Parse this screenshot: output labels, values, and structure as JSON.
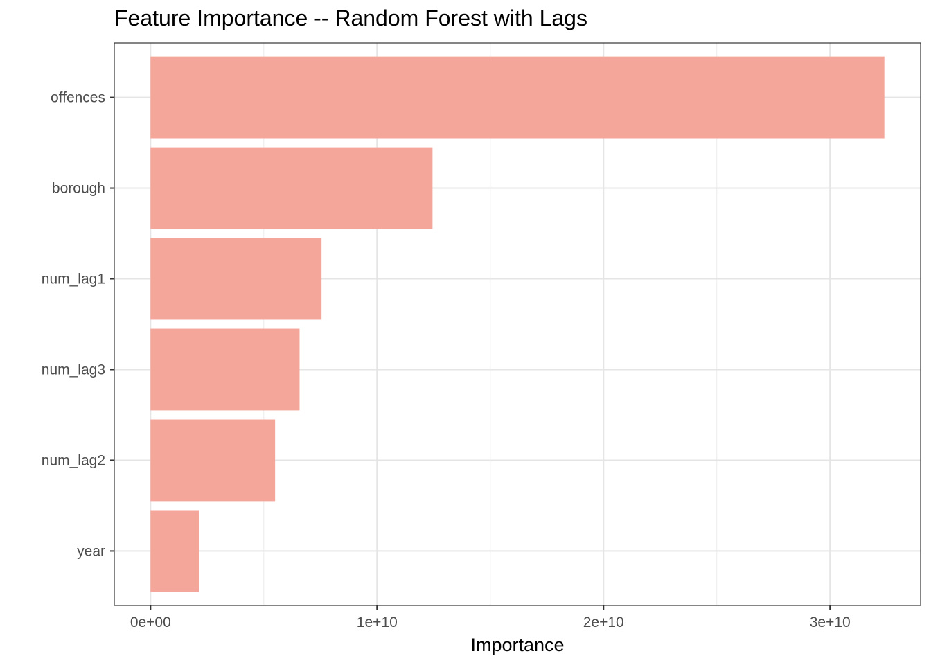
{
  "chart_data": {
    "type": "bar",
    "orientation": "horizontal",
    "title": "Feature Importance -- Random Forest with Lags",
    "xlabel": "Importance",
    "ylabel": "",
    "categories": [
      "offences",
      "borough",
      "num_lag1",
      "num_lag3",
      "num_lag2",
      "year"
    ],
    "values": [
      32400000000,
      12450000000,
      7550000000,
      6580000000,
      5500000000,
      2150000000
    ],
    "xlim": [
      -1600000000,
      34000000000
    ],
    "x_ticks": [
      0,
      10000000000,
      20000000000,
      30000000000
    ],
    "x_tick_labels": [
      "0e+00",
      "1e+10",
      "2e+10",
      "3e+10"
    ],
    "bar_color": "#F4A69B",
    "grid": true,
    "legend": "none"
  }
}
